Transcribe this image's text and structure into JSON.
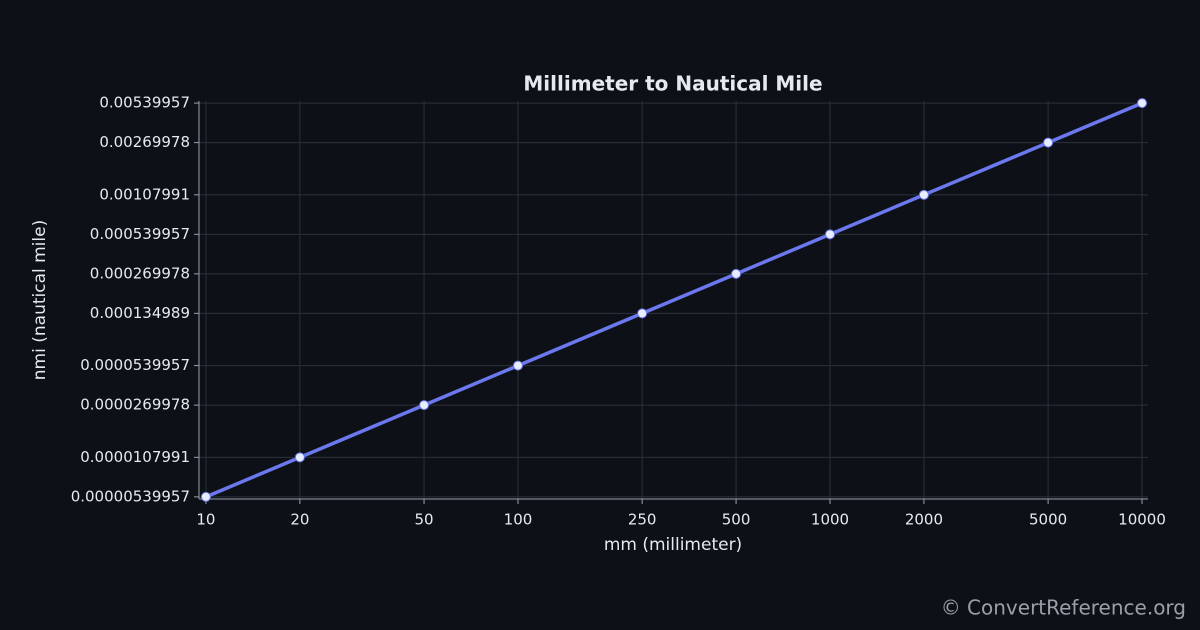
{
  "chart_data": {
    "type": "line",
    "title": "Millimeter to Nautical Mile",
    "xlabel": "mm (millimeter)",
    "ylabel": "nmi (nautical mile)",
    "x": [
      10,
      20,
      50,
      100,
      250,
      500,
      1000,
      2000,
      5000,
      10000
    ],
    "values": [
      5.39957e-06,
      1.07991e-05,
      2.69978e-05,
      5.39957e-05,
      0.000134989,
      0.000269978,
      0.000539957,
      0.00107991,
      0.00269978,
      0.00539957
    ],
    "color": "#6b78ee",
    "marker_color": "#e8ecff",
    "xscale": "log",
    "yscale": "log",
    "xlim": [
      9.5,
      10450
    ],
    "ylim": [
      5.2e-06,
      0.0056
    ],
    "xticks": [
      10,
      20,
      50,
      100,
      250,
      500,
      1000,
      2000,
      5000,
      10000
    ],
    "yticks": [
      5.39957e-06,
      1.07991e-05,
      2.69978e-05,
      5.39957e-05,
      0.000134989,
      0.000269978,
      0.000539957,
      0.00107991,
      0.00269978,
      0.00539957
    ],
    "grid": true
  },
  "footer": "© ConvertReference.org"
}
